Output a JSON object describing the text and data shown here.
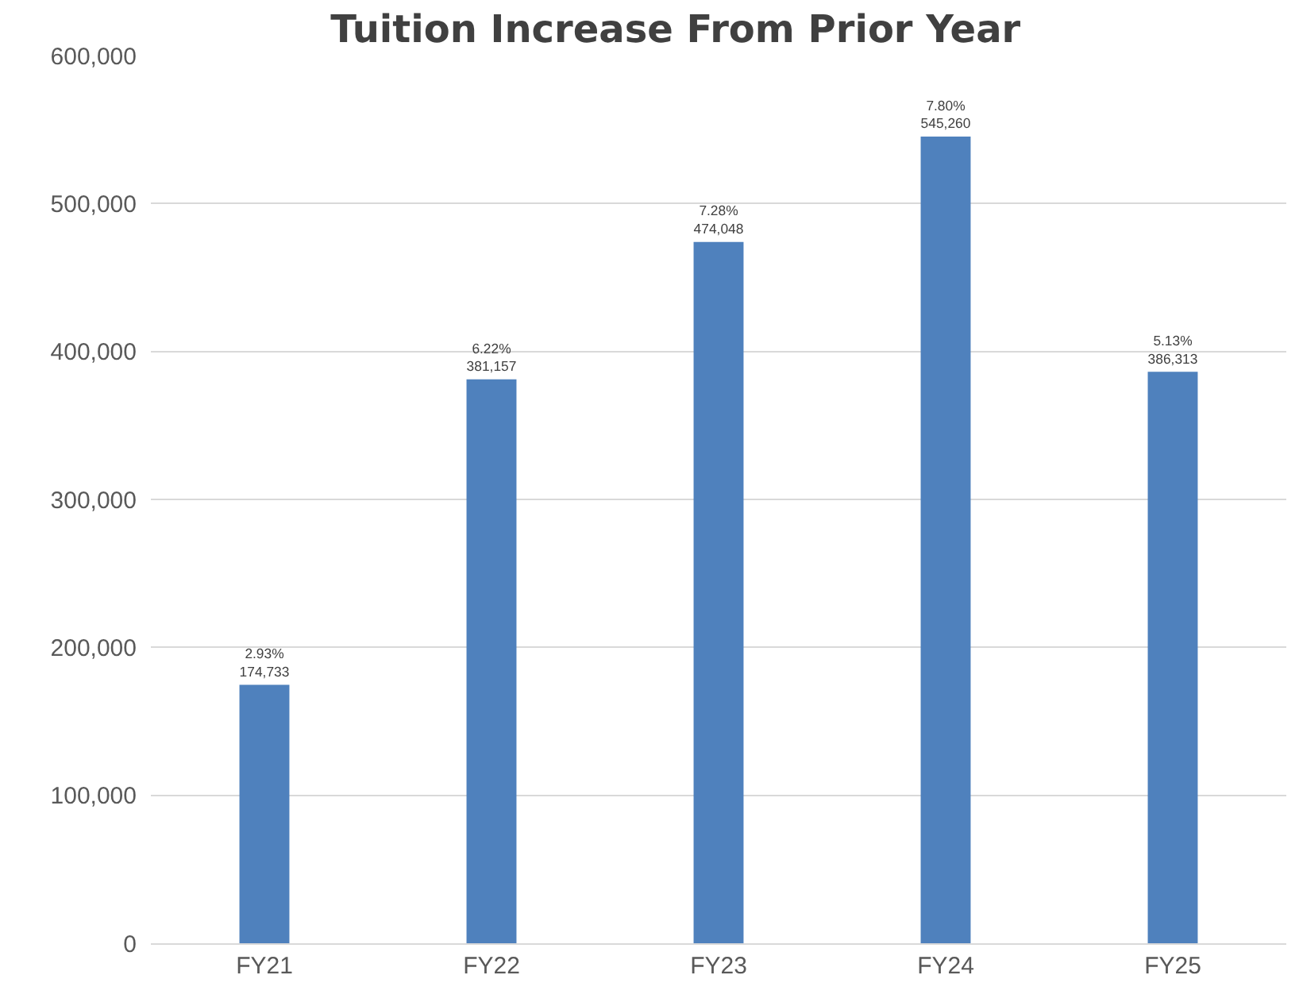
{
  "chart_data": {
    "type": "bar",
    "title": "Tuition Increase From Prior Year",
    "categories": [
      "FY21",
      "FY22",
      "FY23",
      "FY24",
      "FY25"
    ],
    "values": [
      174733,
      381157,
      474048,
      545260,
      386313
    ],
    "value_labels": [
      "2.93%\n174,733",
      "6.22%\n381,157",
      "7.28%\n474,048",
      "7.80%\n545,260",
      "5.13%\n386,313"
    ],
    "color": "#4f81bd",
    "ylim": [
      0,
      600000
    ],
    "yticks": [
      0,
      {
        "value": 100000,
        "label": "100,000"
      },
      {
        "value": 200000,
        "label": "200,000"
      },
      {
        "value": 300000,
        "label": "300,000"
      },
      {
        "value": 400000,
        "label": "400,000"
      },
      {
        "value": 500000,
        "label": "500,000"
      },
      {
        "value": 600000,
        "label": "600,000"
      }
    ],
    "grid": "y",
    "legend": false
  }
}
